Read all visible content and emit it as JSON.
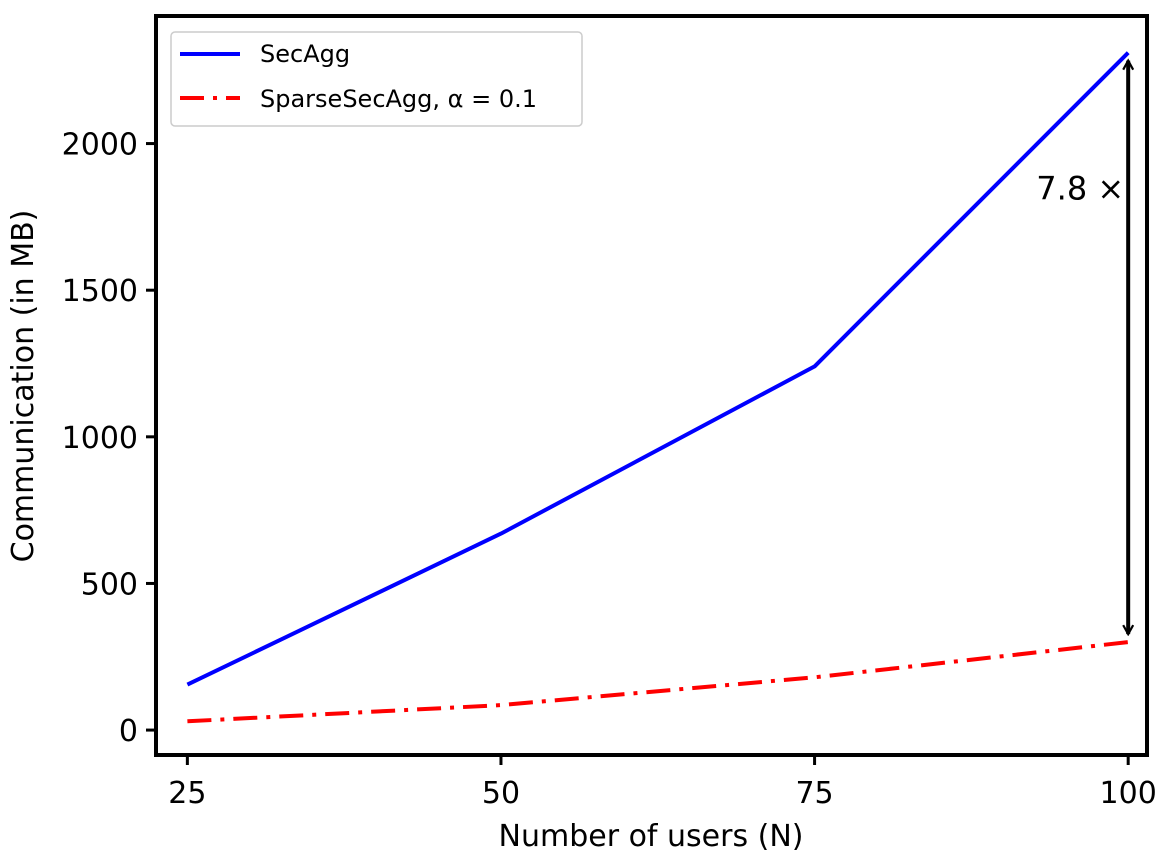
{
  "chart_data": {
    "type": "line",
    "title": "",
    "xlabel": "Number of users (N)",
    "ylabel": "Communication (in MB)",
    "x": [
      25,
      50,
      75,
      100
    ],
    "xticks": [
      "25",
      "50",
      "75",
      "100"
    ],
    "yticks": [
      "0",
      "500",
      "1000",
      "1500",
      "2000"
    ],
    "xlim": [
      22.5,
      101.5
    ],
    "ylim": [
      -85,
      2435
    ],
    "grid": false,
    "legend_position": "top-left",
    "series": [
      {
        "name": "SecAgg",
        "values": [
          155,
          670,
          1240,
          2310
        ],
        "color": "#0000ff",
        "style": "solid"
      },
      {
        "name": "SparseSecAgg, α = 0.1",
        "values": [
          30,
          85,
          180,
          300
        ],
        "color": "#ff0000",
        "style": "dashdot"
      }
    ],
    "annotation": {
      "text": "7.8 ×",
      "x": 100,
      "from": 300,
      "to": 2310
    }
  }
}
